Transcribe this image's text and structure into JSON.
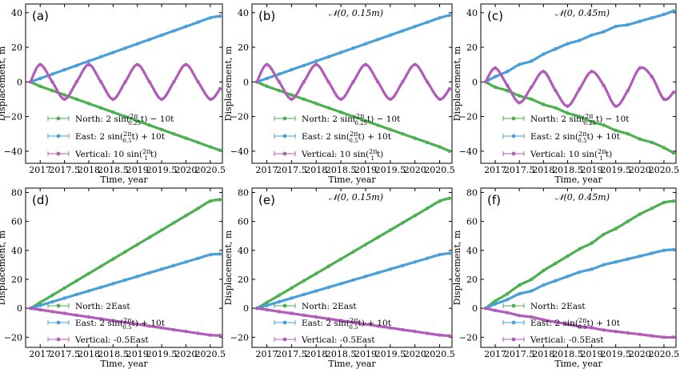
{
  "colors": {
    "north": "#4caf50",
    "east": "#4a9fd8",
    "vertical": "#b05cb8"
  },
  "chart_data": [
    {
      "type": "scatter",
      "panel": "(a)",
      "noise": "",
      "xlabel": "Time, year",
      "ylabel": "Displacement, m",
      "xlim": [
        2016.7,
        2020.75
      ],
      "ylim": [
        -47,
        45
      ],
      "x_ticks": [
        "2017",
        "2017.5",
        "2018",
        "2018.5",
        "2019",
        "2019.5",
        "2020",
        "2020.5"
      ],
      "y_ticks": [
        "-40",
        "-20",
        "0",
        "20",
        "40"
      ],
      "x": [
        2016.8,
        2017.0,
        2017.25,
        2017.5,
        2017.75,
        2018.0,
        2018.25,
        2018.5,
        2018.75,
        2019.0,
        2019.25,
        2019.5,
        2019.75,
        2020.0,
        2020.25,
        2020.5,
        2020.7
      ],
      "series": [
        {
          "name": "North: 2 sin(2π/0.25 t) − 10t",
          "component": "north",
          "y": [
            0,
            -2.5,
            -5,
            -7.5,
            -10,
            -12.5,
            -15,
            -17.5,
            -20,
            -22.5,
            -25,
            -27.5,
            -30,
            -32.5,
            -35,
            -37.5,
            -39.5
          ]
        },
        {
          "name": "East: 2 sin(2π/0.5 t) + 10t",
          "component": "east",
          "y": [
            0,
            2,
            4.5,
            7,
            9.5,
            12,
            14.5,
            17,
            19.5,
            22,
            24.5,
            27,
            29.5,
            32,
            34.5,
            37,
            38
          ]
        },
        {
          "name": "Vertical: 10 sin(2π/1 t)",
          "component": "vertical",
          "y": [
            0,
            10,
            0,
            -10,
            0,
            10,
            0,
            -10,
            0,
            10,
            0,
            -10,
            0,
            10,
            0,
            -10,
            -4
          ]
        }
      ]
    },
    {
      "type": "scatter",
      "panel": "(b)",
      "noise": "𝒩(0, 0.15m)",
      "xlabel": "Time, year",
      "ylabel": "Displacement, m",
      "xlim": [
        2016.7,
        2020.75
      ],
      "ylim": [
        -47,
        45
      ],
      "x_ticks": [
        "2017",
        "2017.5",
        "2018",
        "2018.5",
        "2019",
        "2019.5",
        "2020",
        "2020.5"
      ],
      "y_ticks": [
        "-40",
        "-20",
        "0",
        "20",
        "40"
      ],
      "x": [
        2016.8,
        2017.0,
        2017.25,
        2017.5,
        2017.75,
        2018.0,
        2018.25,
        2018.5,
        2018.75,
        2019.0,
        2019.25,
        2019.5,
        2019.75,
        2020.0,
        2020.25,
        2020.5,
        2020.7
      ],
      "series": [
        {
          "name": "North: 2 sin(2π/0.25 t) − 10t",
          "component": "north",
          "y": [
            0,
            -2.5,
            -5,
            -7.5,
            -10,
            -12.5,
            -15,
            -17.5,
            -20,
            -22.5,
            -25,
            -27.5,
            -30,
            -32.5,
            -35,
            -37.5,
            -40
          ]
        },
        {
          "name": "East: 2 sin(2π/0.5 t) + 10t",
          "component": "east",
          "y": [
            0,
            2,
            4.5,
            7,
            9.5,
            12,
            14.5,
            17,
            19.5,
            22,
            24.5,
            27,
            29.5,
            32,
            34.5,
            37,
            38.5
          ]
        },
        {
          "name": "Vertical: 10 sin(2π/1 t)",
          "component": "vertical",
          "y": [
            0,
            10,
            0,
            -10,
            0,
            10,
            0,
            -10,
            0,
            10,
            0,
            -10,
            0,
            10,
            0,
            -10,
            -4
          ]
        }
      ]
    },
    {
      "type": "scatter",
      "panel": "(c)",
      "noise": "𝒩(0, 0.45m)",
      "xlabel": "Time, year",
      "ylabel": "Displacement, m",
      "xlim": [
        2016.7,
        2020.75
      ],
      "ylim": [
        -47,
        45
      ],
      "x_ticks": [
        "2017",
        "2017.5",
        "2018",
        "2018.5",
        "2019",
        "2019.5",
        "2020",
        "2020.5"
      ],
      "y_ticks": [
        "-40",
        "-20",
        "0",
        "20",
        "40"
      ],
      "x": [
        2016.8,
        2017.0,
        2017.25,
        2017.5,
        2017.75,
        2018.0,
        2018.25,
        2018.5,
        2018.75,
        2019.0,
        2019.25,
        2019.5,
        2019.75,
        2020.0,
        2020.25,
        2020.5,
        2020.7
      ],
      "series": [
        {
          "name": "North: 2 sin(2π/0.25 t) − 10t",
          "component": "north",
          "y": [
            0,
            -3,
            -5,
            -8,
            -10,
            -13,
            -15,
            -18,
            -20,
            -23,
            -25,
            -28,
            -30,
            -33,
            -35,
            -38,
            -41
          ]
        },
        {
          "name": "East: 2 sin(2π/0.5 t) + 10t",
          "component": "east",
          "y": [
            0,
            3,
            6,
            10,
            12,
            16,
            19,
            22,
            24,
            27,
            29,
            32,
            33,
            35,
            37,
            39,
            41
          ]
        },
        {
          "name": "Vertical: 10 sin(2π/1 t)",
          "component": "vertical",
          "y": [
            0,
            8,
            -2,
            -12,
            -3,
            6,
            -5,
            -14,
            -4,
            6,
            -2,
            -14,
            -5,
            8,
            3,
            -10,
            -6
          ]
        }
      ]
    },
    {
      "type": "scatter",
      "panel": "(d)",
      "noise": "",
      "xlabel": "Time, year",
      "ylabel": "Displacement, m",
      "xlim": [
        2016.7,
        2020.75
      ],
      "ylim": [
        -27,
        83
      ],
      "x_ticks": [
        "2017",
        "2017.5",
        "2018",
        "2018.5",
        "2019",
        "2019.5",
        "2020",
        "2020.5"
      ],
      "y_ticks": [
        "-20",
        "0",
        "20",
        "40",
        "60",
        "80"
      ],
      "x": [
        2016.8,
        2017.0,
        2017.25,
        2017.5,
        2017.75,
        2018.0,
        2018.25,
        2018.5,
        2018.75,
        2019.0,
        2019.25,
        2019.5,
        2019.75,
        2020.0,
        2020.25,
        2020.5,
        2020.7
      ],
      "series": [
        {
          "name": "North: 2East",
          "component": "north",
          "y": [
            0,
            4,
            9,
            14,
            19,
            24,
            29,
            34,
            39,
            44,
            49,
            54,
            59,
            64,
            69,
            74,
            75
          ]
        },
        {
          "name": "East: 2 sin(2π/0.5 t) + 10t",
          "component": "east",
          "y": [
            0,
            2,
            4.5,
            7,
            9.5,
            12,
            14.5,
            17,
            19.5,
            22,
            24.5,
            27,
            29.5,
            32,
            34.5,
            37,
            37.5
          ]
        },
        {
          "name": "Vertical: -0.5East",
          "component": "vertical",
          "y": [
            0,
            -1,
            -2.3,
            -3.5,
            -4.8,
            -6,
            -7.3,
            -8.5,
            -9.8,
            -11,
            -12.3,
            -13.5,
            -14.8,
            -16,
            -17.3,
            -18.5,
            -18.8
          ]
        }
      ]
    },
    {
      "type": "scatter",
      "panel": "(e)",
      "noise": "𝒩(0, 0.15m)",
      "xlabel": "Time, year",
      "ylabel": "Displacement, m",
      "xlim": [
        2016.7,
        2020.75
      ],
      "ylim": [
        -27,
        83
      ],
      "x_ticks": [
        "2017",
        "2017.5",
        "2018",
        "2018.5",
        "2019",
        "2019.5",
        "2020",
        "2020.5"
      ],
      "y_ticks": [
        "-20",
        "0",
        "20",
        "40",
        "60",
        "80"
      ],
      "x": [
        2016.8,
        2017.0,
        2017.25,
        2017.5,
        2017.75,
        2018.0,
        2018.25,
        2018.5,
        2018.75,
        2019.0,
        2019.25,
        2019.5,
        2019.75,
        2020.0,
        2020.25,
        2020.5,
        2020.7
      ],
      "series": [
        {
          "name": "North: 2East",
          "component": "north",
          "y": [
            0,
            4,
            9,
            14,
            19,
            24,
            29,
            34,
            39,
            44,
            49,
            54,
            59,
            64,
            69,
            74,
            76
          ]
        },
        {
          "name": "East: 2 sin(2π/0.5 t) + 10t",
          "component": "east",
          "y": [
            0,
            2,
            4.5,
            7,
            9.5,
            12,
            14.5,
            17,
            19.5,
            22,
            24.5,
            27,
            29.5,
            32,
            34.5,
            37,
            38
          ]
        },
        {
          "name": "Vertical: -0.5East",
          "component": "vertical",
          "y": [
            0,
            -1,
            -2.3,
            -3.5,
            -4.8,
            -6,
            -7.3,
            -8.5,
            -9.8,
            -11,
            -12.3,
            -13.5,
            -14.8,
            -16,
            -17.3,
            -18.5,
            -19
          ]
        }
      ]
    },
    {
      "type": "scatter",
      "panel": "(f)",
      "noise": "𝒩(0, 0.45m)",
      "xlabel": "Time, year",
      "ylabel": "Displacement, m",
      "xlim": [
        2016.7,
        2020.75
      ],
      "ylim": [
        -27,
        83
      ],
      "x_ticks": [
        "2017",
        "2017.5",
        "2018",
        "2018.5",
        "2019",
        "2019.5",
        "2020",
        "2020.5"
      ],
      "y_ticks": [
        "-20",
        "0",
        "20",
        "40",
        "60",
        "80"
      ],
      "x": [
        2016.8,
        2017.0,
        2017.25,
        2017.5,
        2017.75,
        2018.0,
        2018.25,
        2018.5,
        2018.75,
        2019.0,
        2019.25,
        2019.5,
        2019.75,
        2020.0,
        2020.25,
        2020.5,
        2020.7
      ],
      "series": [
        {
          "name": "North: 2East",
          "component": "north",
          "y": [
            0,
            5,
            10,
            16,
            20,
            26,
            31,
            36,
            41,
            45,
            51,
            55,
            60,
            65,
            69,
            73,
            74
          ]
        },
        {
          "name": "East: 2 sin(2π/0.5 t) + 10t",
          "component": "east",
          "y": [
            0,
            3,
            6,
            10,
            12,
            16,
            19,
            22,
            25,
            27,
            30,
            32,
            34,
            36,
            38,
            40,
            40.5
          ]
        },
        {
          "name": "Vertical: -0.5East",
          "component": "vertical",
          "y": [
            0,
            -1.5,
            -3,
            -5,
            -6,
            -8,
            -9.5,
            -11,
            -12.5,
            -13.5,
            -15,
            -16,
            -17,
            -18,
            -19,
            -20,
            -20
          ]
        }
      ]
    }
  ]
}
